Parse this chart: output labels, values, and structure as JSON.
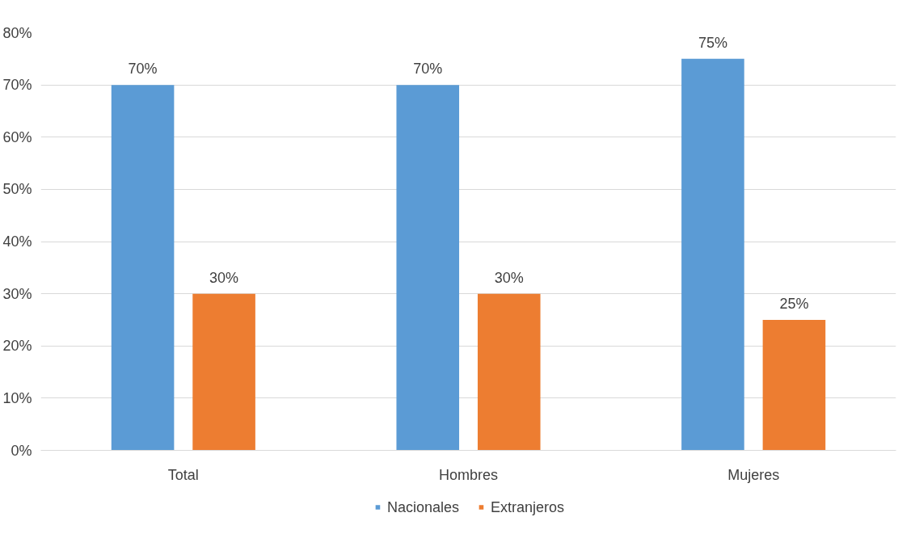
{
  "chart_data": {
    "type": "bar",
    "categories": [
      "Total",
      "Hombres",
      "Mujeres"
    ],
    "series": [
      {
        "name": "Nacionales",
        "color": "#5b9bd5",
        "values": [
          70,
          70,
          75
        ],
        "value_labels": [
          "70%",
          "70%",
          "75%"
        ]
      },
      {
        "name": "Extranjeros",
        "color": "#ed7d31",
        "values": [
          30,
          30,
          25
        ],
        "value_labels": [
          "30%",
          "30%",
          "25%"
        ]
      }
    ],
    "ylim": [
      0,
      80
    ],
    "yticks": [
      {
        "value": 0,
        "label": "0%"
      },
      {
        "value": 10,
        "label": "10%"
      },
      {
        "value": 20,
        "label": "20%"
      },
      {
        "value": 30,
        "label": "30%"
      },
      {
        "value": 40,
        "label": "40%"
      },
      {
        "value": 50,
        "label": "50%"
      },
      {
        "value": 60,
        "label": "60%"
      },
      {
        "value": 70,
        "label": "70%"
      },
      {
        "value": 80,
        "label": "80%"
      }
    ],
    "grid": "y",
    "legend": "bottom"
  }
}
